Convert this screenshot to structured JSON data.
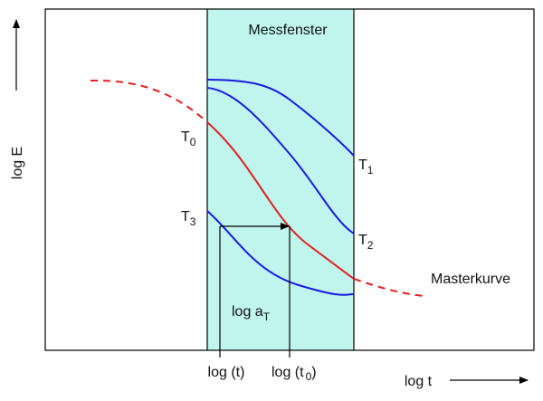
{
  "title": "Messfenster",
  "y_axis_label": "log E",
  "x_axis_label": "log t",
  "curve_label": "Masterkurve",
  "temperatures": [
    {
      "main": "T",
      "sub": "0"
    },
    {
      "main": "T",
      "sub": "1"
    },
    {
      "main": "T",
      "sub": "2"
    },
    {
      "main": "T",
      "sub": "3"
    }
  ],
  "shift_label": {
    "main": "log a",
    "sub": "T"
  },
  "x_markers": [
    {
      "main": "log (t)"
    },
    {
      "main": "log (t",
      "sub": "0",
      "end": ")"
    }
  ]
}
